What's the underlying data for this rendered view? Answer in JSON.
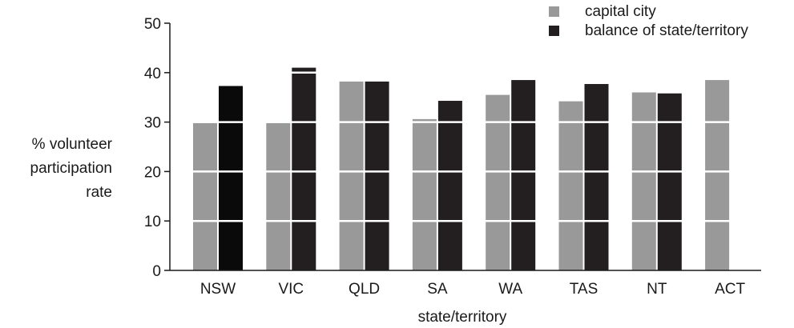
{
  "chart_data": {
    "type": "bar",
    "xlabel": "state/territory",
    "ylabel_lines": [
      "% volunteer",
      "participation",
      "rate"
    ],
    "ylim": [
      0,
      50
    ],
    "yticks": [
      0,
      10,
      20,
      30,
      40,
      50
    ],
    "grid": "horizontal white lines drawn over bars",
    "legend_position": "top-right",
    "categories": [
      "NSW",
      "VIC",
      "QLD",
      "SA",
      "WA",
      "TAS",
      "NT",
      "ACT"
    ],
    "series": [
      {
        "name": "capital city",
        "color": "#999999",
        "values": [
          29.8,
          29.8,
          38.2,
          30.6,
          35.5,
          34.2,
          36.0,
          38.5
        ]
      },
      {
        "name": "balance of state/territory",
        "color": "#231f20",
        "values": [
          37.3,
          41.0,
          38.2,
          34.3,
          38.5,
          37.7,
          35.8,
          null
        ]
      }
    ]
  }
}
